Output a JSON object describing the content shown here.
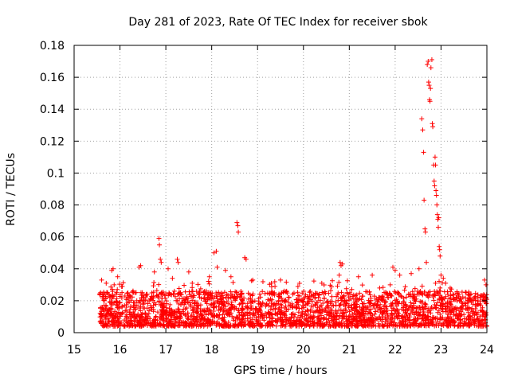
{
  "chart_data": {
    "type": "scatter",
    "title": "Day 281 of 2023, Rate Of TEC Index for receiver sbok",
    "xlabel": "GPS time / hours",
    "ylabel": "ROTI / TECUs",
    "xlim": [
      15,
      24
    ],
    "ylim": [
      0,
      0.18
    ],
    "xticks": [
      "15",
      "16",
      "17",
      "18",
      "19",
      "20",
      "21",
      "22",
      "23",
      "24"
    ],
    "yticks": [
      "0",
      "0.02",
      "0.04",
      "0.06",
      "0.08",
      "0.1",
      "0.12",
      "0.14",
      "0.16",
      "0.18"
    ],
    "grid": true,
    "marker": "+",
    "color": "#ff0000",
    "series": [
      {
        "name": "ROTI",
        "segments": [
          {
            "x_start": 15.55,
            "x_end": 24.0,
            "baseline_low": 0.004,
            "baseline_high": 0.026
          }
        ],
        "points": [
          {
            "x": 15.6,
            "y": 0.033
          },
          {
            "x": 15.7,
            "y": 0.031
          },
          {
            "x": 15.82,
            "y": 0.039
          },
          {
            "x": 15.85,
            "y": 0.04
          },
          {
            "x": 15.95,
            "y": 0.035
          },
          {
            "x": 16.05,
            "y": 0.029
          },
          {
            "x": 16.42,
            "y": 0.041
          },
          {
            "x": 16.45,
            "y": 0.042
          },
          {
            "x": 16.75,
            "y": 0.038
          },
          {
            "x": 16.85,
            "y": 0.059
          },
          {
            "x": 16.86,
            "y": 0.055
          },
          {
            "x": 16.88,
            "y": 0.046
          },
          {
            "x": 16.9,
            "y": 0.044
          },
          {
            "x": 17.05,
            "y": 0.04
          },
          {
            "x": 17.25,
            "y": 0.046
          },
          {
            "x": 17.27,
            "y": 0.044
          },
          {
            "x": 17.5,
            "y": 0.038
          },
          {
            "x": 17.95,
            "y": 0.035
          },
          {
            "x": 18.05,
            "y": 0.05
          },
          {
            "x": 18.1,
            "y": 0.051
          },
          {
            "x": 18.12,
            "y": 0.041
          },
          {
            "x": 18.3,
            "y": 0.039
          },
          {
            "x": 18.42,
            "y": 0.035
          },
          {
            "x": 18.55,
            "y": 0.069
          },
          {
            "x": 18.57,
            "y": 0.067
          },
          {
            "x": 18.58,
            "y": 0.063
          },
          {
            "x": 18.72,
            "y": 0.047
          },
          {
            "x": 18.75,
            "y": 0.046
          },
          {
            "x": 19.3,
            "y": 0.031
          },
          {
            "x": 19.5,
            "y": 0.033
          },
          {
            "x": 20.4,
            "y": 0.031
          },
          {
            "x": 20.8,
            "y": 0.044
          },
          {
            "x": 20.82,
            "y": 0.042
          },
          {
            "x": 20.85,
            "y": 0.043
          },
          {
            "x": 20.78,
            "y": 0.036
          },
          {
            "x": 21.2,
            "y": 0.035
          },
          {
            "x": 21.5,
            "y": 0.036
          },
          {
            "x": 21.95,
            "y": 0.041
          },
          {
            "x": 22.0,
            "y": 0.039
          },
          {
            "x": 22.1,
            "y": 0.036
          },
          {
            "x": 22.35,
            "y": 0.037
          },
          {
            "x": 22.52,
            "y": 0.04
          },
          {
            "x": 22.58,
            "y": 0.134
          },
          {
            "x": 22.6,
            "y": 0.127
          },
          {
            "x": 22.62,
            "y": 0.113
          },
          {
            "x": 22.63,
            "y": 0.083
          },
          {
            "x": 22.65,
            "y": 0.065
          },
          {
            "x": 22.66,
            "y": 0.063
          },
          {
            "x": 22.68,
            "y": 0.044
          },
          {
            "x": 22.7,
            "y": 0.168
          },
          {
            "x": 22.72,
            "y": 0.17
          },
          {
            "x": 22.73,
            "y": 0.157
          },
          {
            "x": 22.74,
            "y": 0.155
          },
          {
            "x": 22.75,
            "y": 0.146
          },
          {
            "x": 22.76,
            "y": 0.145
          },
          {
            "x": 22.77,
            "y": 0.153
          },
          {
            "x": 22.78,
            "y": 0.166
          },
          {
            "x": 22.8,
            "y": 0.171
          },
          {
            "x": 22.81,
            "y": 0.131
          },
          {
            "x": 22.82,
            "y": 0.129
          },
          {
            "x": 22.84,
            "y": 0.105
          },
          {
            "x": 22.85,
            "y": 0.095
          },
          {
            "x": 22.86,
            "y": 0.092
          },
          {
            "x": 22.87,
            "y": 0.11
          },
          {
            "x": 22.88,
            "y": 0.105
          },
          {
            "x": 22.89,
            "y": 0.089
          },
          {
            "x": 22.9,
            "y": 0.086
          },
          {
            "x": 22.91,
            "y": 0.08
          },
          {
            "x": 22.92,
            "y": 0.074
          },
          {
            "x": 22.93,
            "y": 0.071
          },
          {
            "x": 22.94,
            "y": 0.066
          },
          {
            "x": 22.95,
            "y": 0.072
          },
          {
            "x": 22.96,
            "y": 0.054
          },
          {
            "x": 22.97,
            "y": 0.052
          },
          {
            "x": 22.98,
            "y": 0.048
          },
          {
            "x": 23.0,
            "y": 0.036
          },
          {
            "x": 23.05,
            "y": 0.034
          },
          {
            "x": 23.1,
            "y": 0.031
          },
          {
            "x": 23.2,
            "y": 0.028
          },
          {
            "x": 23.85,
            "y": 0.022
          },
          {
            "x": 23.95,
            "y": 0.033
          },
          {
            "x": 23.98,
            "y": 0.03
          }
        ]
      }
    ]
  }
}
